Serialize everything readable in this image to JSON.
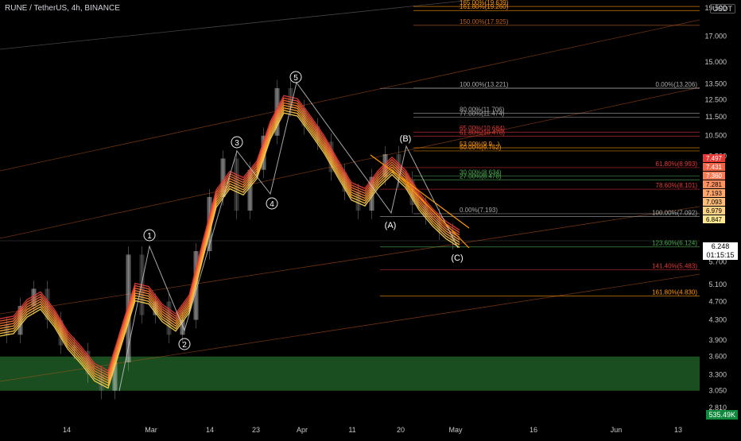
{
  "header": {
    "symbol": "RUNE / TetherUS, 4h, BINANCE",
    "currency_button": "USDT"
  },
  "chart_data": {
    "type": "line",
    "price_scale": "log",
    "ylim": [
      2.7,
      20.5
    ],
    "y_ticks": [
      "19.500",
      "17.000",
      "15.000",
      "13.500",
      "12.500",
      "11.500",
      "10.500",
      "9.500",
      "6.248",
      "5.700",
      "5.100",
      "4.700",
      "4.300",
      "3.900",
      "3.600",
      "3.300",
      "3.050",
      "2.810"
    ],
    "x_ticks": [
      "14",
      "Mar",
      "14",
      "23",
      "Apr",
      "11",
      "20",
      "May",
      "16",
      "Jun",
      "13"
    ],
    "series": [
      {
        "values": [
          4.2,
          4.0,
          4.6,
          5.0,
          4.3,
          3.8,
          3.7,
          3.3,
          3.05,
          3.5,
          5.9,
          4.4,
          4.7,
          4.0,
          4.3,
          6.0,
          7.8,
          9.4,
          7.3,
          8.9,
          10.5,
          13.22,
          12.0,
          11.0,
          10.2,
          8.8,
          8.0,
          7.3,
          8.6,
          9.6,
          8.5,
          7.5,
          7.1,
          6.6,
          6.3
        ]
      }
    ],
    "elliott_labels": [
      "1",
      "2",
      "3",
      "4",
      "5",
      "(A)",
      "(B)",
      "(C)"
    ],
    "fib_levels_upper": [
      "165.00%(19.639)",
      "161.80%(19.260)",
      "150.00%(17.925)",
      "100.00%(13.221)",
      "80.00%(11.706)",
      "77.00%(11.474)",
      "65.00%(10.684)",
      "61.80%(10.478)",
      "53.00%(9.9...)",
      "50.00%(9.752)",
      "30.00%(8.634)",
      "27.00%(8.478)",
      "0.00%(7.193)"
    ],
    "fib_levels_lower": [
      "0.00%(13.206)",
      "61.80%(8.993)",
      "78.60%(8.101)",
      "100.00%(7.092)",
      "123.60%(6.124)",
      "141.40%(5.483)",
      "161.80%(4.830)"
    ],
    "price_tags": [
      "7.497",
      "7.431",
      "7.360",
      "7.281",
      "7.193",
      "7.093",
      "6.979",
      "6.847"
    ],
    "current_price": "6.248",
    "countdown": "01:15:15",
    "volume_label": "535.49K",
    "colors": {
      "background": "#000000",
      "demand_zone": "#1e5a26",
      "ribbon_top": "#ffd54f",
      "ribbon_bottom": "#e53935"
    }
  }
}
